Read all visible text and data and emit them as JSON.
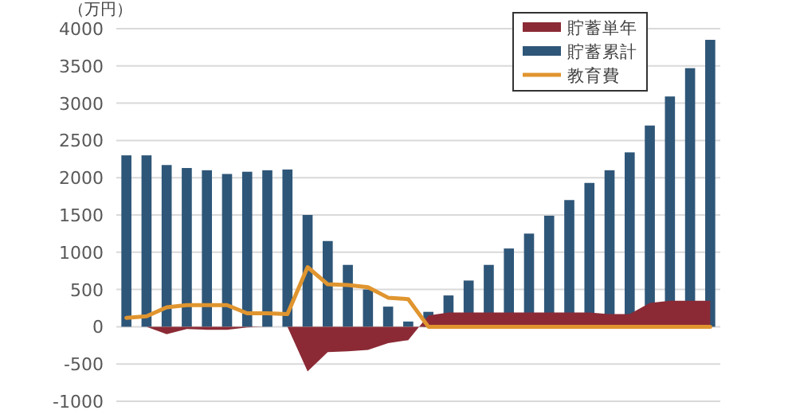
{
  "chart_data": {
    "type": "bar",
    "ylabel": "（万円）",
    "categories": [
      null,
      null,
      null,
      null,
      null,
      null,
      null,
      null,
      null,
      null,
      null,
      null,
      null,
      null,
      null,
      null,
      null,
      null,
      null,
      null,
      null,
      null,
      null,
      null,
      null,
      null,
      null,
      null,
      null,
      null
    ],
    "series": [
      {
        "name": "貯蓄単年",
        "type": "area",
        "color": "#8b2a35",
        "values": [
          0,
          0,
          -100,
          -30,
          -40,
          -40,
          -10,
          0,
          0,
          -600,
          -340,
          -330,
          -310,
          -220,
          -180,
          150,
          190,
          190,
          190,
          190,
          190,
          190,
          190,
          190,
          170,
          170,
          320,
          350,
          350,
          350
        ]
      },
      {
        "name": "貯蓄累計",
        "color": "#2e5678",
        "values": [
          2300,
          2300,
          2170,
          2130,
          2100,
          2050,
          2080,
          2100,
          2110,
          1500,
          1150,
          830,
          500,
          270,
          70,
          200,
          420,
          620,
          830,
          1050,
          1250,
          1490,
          1700,
          1930,
          2100,
          2340,
          2700,
          3090,
          3470,
          3850
        ]
      },
      {
        "name": "教育費",
        "type": "line",
        "color": "#e0952f",
        "values": [
          120,
          140,
          260,
          290,
          290,
          290,
          180,
          180,
          170,
          800,
          570,
          560,
          530,
          390,
          370,
          0,
          0,
          0,
          0,
          0,
          0,
          0,
          0,
          0,
          0,
          0,
          0,
          0,
          0,
          0
        ]
      }
    ],
    "ylim": [
      -1000,
      4000
    ],
    "yticks": [
      -1000,
      -500,
      0,
      500,
      1000,
      1500,
      2000,
      2500,
      3000,
      3500,
      4000
    ],
    "grid": "y",
    "legend": "top right",
    "tick_labels": "y"
  }
}
